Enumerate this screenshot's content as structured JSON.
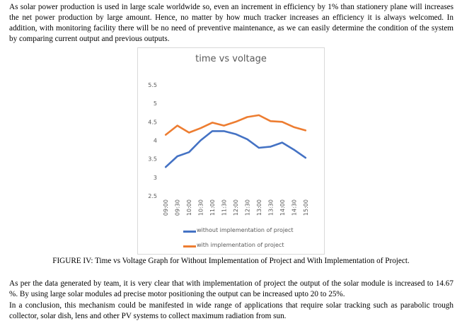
{
  "text": {
    "para1": "As solar power production is used in large scale worldwide so, even an increment in efficiency by 1% than stationery plane will increases the net power production by large amount. Hence, no matter by how much tracker increases an efficiency it is always welcomed. In addition, with monitoring facility there will be no need of preventive maintenance, as we can easily determine the condition of the system by comparing current output and previous outputs.",
    "caption": "FIGURE IV: Time vs Voltage Graph for Without Implementation of Project and With Implementation of Project.",
    "para2": "As per the data generated by team, it is very clear that with implementation of project the output of the solar module is increased to 14.67 %. By using large solar modules ad precise motor positioning the output can be increased upto 20 to 25%.",
    "para3": "In a conclusion, this mechanism could be manifested in wide range of applications that require solar tracking such as parabolic trough collector, solar dish, lens and other PV systems to collect maximum radiation from sun."
  },
  "chart_data": {
    "type": "line",
    "title": "time vs voltage",
    "xlabel": "",
    "ylabel": "",
    "categories": [
      "09:00",
      "09:30",
      "10:00",
      "10:30",
      "11:00",
      "11:30",
      "12:00",
      "12:30",
      "13:00",
      "13:30",
      "14:00",
      "14:30",
      "15:00"
    ],
    "ylim": [
      2.5,
      5.5
    ],
    "yticks": [
      "2.5",
      "3",
      "3.5",
      "4",
      "4.5",
      "5",
      "5.5"
    ],
    "grid": false,
    "legend_position": "bottom",
    "series": [
      {
        "name": "without implementation of project",
        "color": "#4472c4",
        "values": [
          3.28,
          3.57,
          3.68,
          4.0,
          4.25,
          4.25,
          4.17,
          4.03,
          3.8,
          3.83,
          3.94,
          3.75,
          3.53
        ]
      },
      {
        "name": "with implementation of project",
        "color": "#ed7d31",
        "values": [
          4.15,
          4.4,
          4.21,
          4.33,
          4.48,
          4.4,
          4.5,
          4.63,
          4.68,
          4.52,
          4.5,
          4.36,
          4.27
        ]
      }
    ]
  }
}
